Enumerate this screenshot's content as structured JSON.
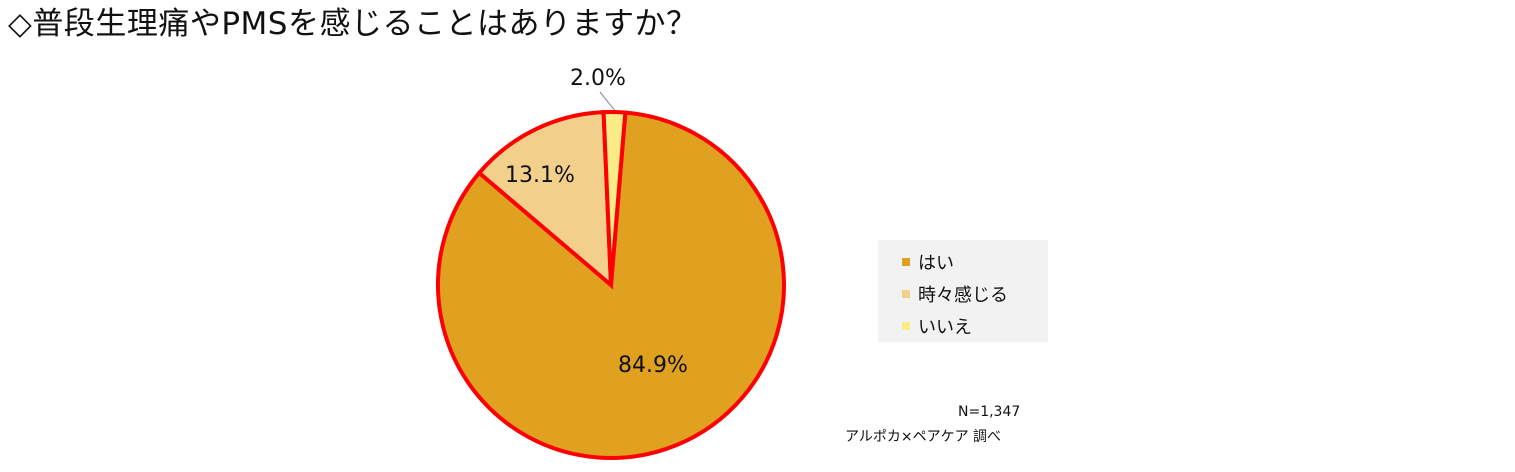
{
  "title": "◇普段生理痛やPMSを感じることはありますか？",
  "legend": {
    "items": [
      {
        "label": "はい",
        "color": "#E0A020"
      },
      {
        "label": "時々感じる",
        "color": "#F2D08C"
      },
      {
        "label": "いいえ",
        "color": "#FBEC88"
      }
    ]
  },
  "notes": {
    "sample": "N=1,347",
    "source": "アルポカ×ペアケア 調べ"
  },
  "chart_data": {
    "type": "pie",
    "categories": [
      "はい",
      "時々感じる",
      "いいえ"
    ],
    "values": [
      84.9,
      13.1,
      2.0
    ],
    "labels": [
      "84.9%",
      "13.1%",
      "2.0%"
    ],
    "colors": [
      "#E0A020",
      "#F2D08C",
      "#FBEC88"
    ],
    "outline_color": "#FF0000",
    "legend_position": "right"
  }
}
